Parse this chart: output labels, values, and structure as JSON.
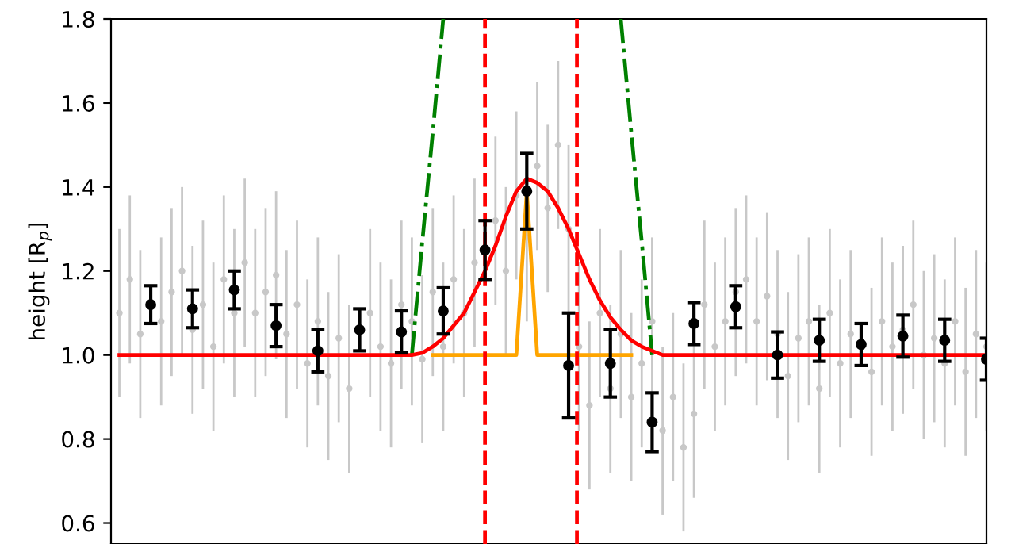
{
  "chart_data": {
    "type": "scatter",
    "ylabel": "height [R$_{p}$]",
    "categories": [
      null,
      null,
      null,
      null,
      null,
      null,
      null,
      null,
      null,
      null,
      null,
      null,
      null,
      null,
      null,
      null,
      null,
      null,
      null,
      null,
      null,
      null,
      null,
      null,
      null,
      null,
      null,
      null,
      null,
      null,
      null,
      null,
      null,
      null,
      null,
      null,
      null,
      null,
      null,
      null,
      null,
      null,
      null,
      null,
      null,
      null,
      null,
      null,
      null,
      null,
      null,
      null,
      null,
      null,
      null,
      null,
      null,
      null,
      null,
      null,
      null,
      null,
      null,
      null,
      null,
      null,
      null,
      null,
      null,
      null,
      null,
      null,
      null,
      null,
      null,
      null,
      null,
      null,
      null,
      null,
      null,
      null,
      null,
      null
    ],
    "ylim": [
      0.55,
      1.8
    ],
    "yticks": [
      0.6,
      0.8,
      {
        "value": 1.0,
        "label": "1.0"
      },
      1.2,
      1.4,
      1.6,
      1.8
    ],
    "tick_labels": "y",
    "grid": false,
    "legend": false,
    "series": [
      {
        "color": "#c8c8c8",
        "marker": "circle",
        "values": [
          1.1,
          1.18,
          1.05,
          null,
          1.08,
          1.15,
          1.2,
          1.06,
          1.12,
          1.02,
          1.18,
          1.1,
          1.22,
          1.1,
          1.15,
          1.19,
          1.05,
          1.12,
          0.98,
          1.08,
          0.95,
          1.04,
          0.92,
          null,
          1.1,
          1.02,
          0.98,
          1.12,
          1.08,
          0.99,
          1.15,
          1.02,
          1.18,
          1.1,
          1.22,
          null,
          1.32,
          1.2,
          1.38,
          1.28,
          1.45,
          1.35,
          1.5,
          1.3,
          1.02,
          0.88,
          1.1,
          0.92,
          1.05,
          0.9,
          0.98,
          1.08,
          0.82,
          0.9,
          0.78,
          0.86,
          1.12,
          1.02,
          1.08,
          1.15,
          1.18,
          1.08,
          1.14,
          1.05,
          0.95,
          1.04,
          1.08,
          0.92,
          1.1,
          0.98,
          1.05,
          null,
          0.96,
          1.08,
          1.02,
          1.06,
          1.12,
          1.0,
          1.04,
          0.98,
          1.08,
          0.96,
          1.05,
          1.02
        ],
        "errors": [
          0.2,
          0.2,
          0.2,
          null,
          0.2,
          0.2,
          0.2,
          0.2,
          0.2,
          0.2,
          0.2,
          0.2,
          0.2,
          0.2,
          0.2,
          0.2,
          0.2,
          0.2,
          0.2,
          0.2,
          0.2,
          0.2,
          0.2,
          null,
          0.2,
          0.2,
          0.2,
          0.2,
          0.2,
          0.2,
          0.2,
          0.2,
          0.2,
          0.2,
          0.2,
          null,
          0.2,
          0.2,
          0.2,
          0.2,
          0.2,
          0.2,
          0.2,
          0.2,
          0.2,
          0.2,
          0.2,
          0.2,
          0.2,
          0.2,
          0.2,
          0.2,
          0.2,
          0.2,
          0.2,
          0.2,
          0.2,
          0.2,
          0.2,
          0.2,
          0.2,
          0.2,
          0.2,
          0.2,
          0.2,
          0.2,
          0.2,
          0.2,
          0.2,
          0.2,
          0.2,
          null,
          0.2,
          0.2,
          0.2,
          0.2,
          0.2,
          0.2,
          0.2,
          0.2,
          0.2,
          0.2,
          0.2,
          0.2
        ]
      },
      {
        "type": "line",
        "color": "#008000",
        "line_style": "dashdot",
        "values": [
          null,
          null,
          null,
          null,
          null,
          null,
          null,
          null,
          null,
          null,
          null,
          null,
          null,
          null,
          null,
          null,
          null,
          null,
          null,
          null,
          null,
          null,
          null,
          null,
          null,
          null,
          null,
          null,
          1.0,
          1.27,
          1.53,
          1.8,
          null,
          null,
          null,
          null,
          null,
          null,
          null,
          null,
          null,
          null,
          null,
          null,
          null,
          null,
          null,
          null,
          1.8,
          1.53,
          1.27,
          1.0,
          null,
          null,
          null,
          null,
          null,
          null,
          null,
          null,
          null,
          null,
          null,
          null,
          null,
          null,
          null,
          null,
          null,
          null,
          null,
          null,
          null,
          null,
          null,
          null,
          null,
          null,
          null,
          null,
          null,
          null,
          null,
          null
        ]
      },
      {
        "type": "line",
        "color": "#ffa500",
        "line_style": "solid",
        "values": [
          null,
          null,
          null,
          null,
          null,
          null,
          null,
          null,
          null,
          null,
          null,
          null,
          null,
          null,
          null,
          null,
          null,
          null,
          null,
          null,
          null,
          null,
          null,
          null,
          null,
          null,
          null,
          null,
          null,
          null,
          1.0,
          1.0,
          1.0,
          1.0,
          1.0,
          1.0,
          1.0,
          1.0,
          1.0,
          1.39,
          1.0,
          1.0,
          1.0,
          1.0,
          1.0,
          1.0,
          1.0,
          1.0,
          1.0,
          1.0,
          null,
          null,
          null,
          null,
          null,
          null,
          null,
          null,
          null,
          null,
          null,
          null,
          null,
          null,
          null,
          null,
          null,
          null,
          null,
          null,
          null,
          null,
          null,
          null,
          null,
          null,
          null,
          null,
          null,
          null,
          null,
          null,
          null,
          null
        ]
      },
      {
        "type": "line",
        "color": "#ff0000",
        "line_style": "solid",
        "values": [
          1.0,
          1.0,
          1.0,
          1.0,
          1.0,
          1.0,
          1.0,
          1.0,
          1.0,
          1.0,
          1.0,
          1.0,
          1.0,
          1.0,
          1.0,
          1.0,
          1.0,
          1.0,
          1.0,
          1.0,
          1.0,
          1.0,
          1.0,
          1.0,
          1.0,
          1.0,
          1.0,
          1.0,
          1.0,
          1.005,
          1.02,
          1.04,
          1.07,
          1.1,
          1.15,
          1.2,
          1.26,
          1.33,
          1.39,
          1.42,
          1.41,
          1.39,
          1.35,
          1.3,
          1.24,
          1.18,
          1.13,
          1.09,
          1.06,
          1.035,
          1.02,
          1.01,
          1.0,
          1.0,
          1.0,
          1.0,
          1.0,
          1.0,
          1.0,
          1.0,
          1.0,
          1.0,
          1.0,
          1.0,
          1.0,
          1.0,
          1.0,
          1.0,
          1.0,
          1.0,
          1.0,
          1.0,
          1.0,
          1.0,
          1.0,
          1.0,
          1.0,
          1.0,
          1.0,
          1.0,
          1.0,
          1.0,
          1.0,
          1.0
        ]
      },
      {
        "color": "#000000",
        "marker": "circle",
        "values": [
          null,
          null,
          null,
          1.12,
          null,
          null,
          null,
          1.11,
          null,
          null,
          null,
          1.155,
          null,
          null,
          null,
          1.07,
          null,
          null,
          null,
          1.01,
          null,
          null,
          null,
          1.06,
          null,
          null,
          null,
          1.055,
          null,
          null,
          null,
          1.105,
          null,
          null,
          null,
          1.25,
          null,
          null,
          null,
          1.39,
          null,
          null,
          null,
          0.975,
          null,
          null,
          null,
          0.98,
          null,
          null,
          null,
          0.84,
          null,
          null,
          null,
          1.075,
          null,
          null,
          null,
          1.115,
          null,
          null,
          null,
          1.0,
          null,
          null,
          null,
          1.035,
          null,
          null,
          null,
          1.025,
          null,
          null,
          null,
          1.045,
          null,
          null,
          null,
          1.035,
          null,
          null,
          null,
          0.99
        ],
        "errors": [
          null,
          null,
          null,
          0.045,
          null,
          null,
          null,
          0.045,
          null,
          null,
          null,
          0.045,
          null,
          null,
          null,
          0.05,
          null,
          null,
          null,
          0.05,
          null,
          null,
          null,
          0.05,
          null,
          null,
          null,
          0.05,
          null,
          null,
          null,
          0.055,
          null,
          null,
          null,
          0.07,
          null,
          null,
          null,
          0.09,
          null,
          null,
          null,
          0.125,
          null,
          null,
          null,
          0.08,
          null,
          null,
          null,
          0.07,
          null,
          null,
          null,
          0.05,
          null,
          null,
          null,
          0.05,
          null,
          null,
          null,
          0.055,
          null,
          null,
          null,
          0.05,
          null,
          null,
          null,
          0.05,
          null,
          null,
          null,
          0.05,
          null,
          null,
          null,
          0.05,
          null,
          null,
          null,
          0.05
        ]
      }
    ]
  }
}
